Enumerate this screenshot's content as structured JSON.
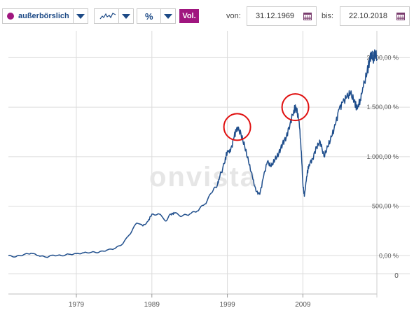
{
  "toolbar": {
    "exchange_label": "außerbörslich",
    "percent_label": "%",
    "vol_label": "Vol.",
    "from_label": "von:",
    "from_value": "31.12.1969",
    "to_label": "bis:",
    "to_value": "22.10.2018",
    "icons": {
      "exchange_dot": "purple-dot-icon",
      "line_type": "line-chart-icon",
      "calendar": "calendar-icon",
      "dropdown": "chevron-down-icon"
    },
    "colors": {
      "accent": "#a0167f",
      "control_text": "#1d4a86"
    }
  },
  "watermark": "onvista",
  "chart_data": {
    "type": "line",
    "x_range": [
      1970.0,
      2018.8
    ],
    "x_ticks": [
      {
        "value": 1979,
        "label": "1979"
      },
      {
        "value": 1989,
        "label": "1989"
      },
      {
        "value": 1999,
        "label": "1999"
      },
      {
        "value": 2009,
        "label": "2009"
      }
    ],
    "y_ticks": [
      {
        "value": 0,
        "label": "0,00 %"
      },
      {
        "value": 500,
        "label": "500,00 %"
      },
      {
        "value": 1000,
        "label": "1.000,00 %"
      },
      {
        "value": 1500,
        "label": "1.500,00 %"
      },
      {
        "value": 2000,
        "label": "2.000,00 %"
      }
    ],
    "ylim": [
      -90,
      2130
    ],
    "volume_axis_label": "0",
    "series": [
      {
        "color": "#1f4e8c",
        "points": [
          [
            1970.0,
            0
          ],
          [
            1971.0,
            -10
          ],
          [
            1972.0,
            10
          ],
          [
            1973.0,
            25
          ],
          [
            1974.0,
            0
          ],
          [
            1975.0,
            -15
          ],
          [
            1976.0,
            5
          ],
          [
            1977.0,
            0
          ],
          [
            1978.0,
            15
          ],
          [
            1979.0,
            20
          ],
          [
            1980.0,
            30
          ],
          [
            1981.0,
            35
          ],
          [
            1982.0,
            35
          ],
          [
            1983.0,
            55
          ],
          [
            1984.0,
            70
          ],
          [
            1985.0,
            110
          ],
          [
            1986.0,
            210
          ],
          [
            1987.0,
            330
          ],
          [
            1987.8,
            300
          ],
          [
            1988.5,
            350
          ],
          [
            1989.0,
            420
          ],
          [
            1990.0,
            420
          ],
          [
            1990.8,
            350
          ],
          [
            1991.5,
            420
          ],
          [
            1992.0,
            430
          ],
          [
            1993.0,
            400
          ],
          [
            1994.0,
            420
          ],
          [
            1995.0,
            450
          ],
          [
            1996.0,
            520
          ],
          [
            1997.0,
            640
          ],
          [
            1997.7,
            720
          ],
          [
            1998.0,
            800
          ],
          [
            1998.6,
            930
          ],
          [
            1999.0,
            1060
          ],
          [
            1999.4,
            1050
          ],
          [
            1999.9,
            1200
          ],
          [
            2000.3,
            1300
          ],
          [
            2000.8,
            1230
          ],
          [
            2001.3,
            1100
          ],
          [
            2001.8,
            950
          ],
          [
            2002.3,
            800
          ],
          [
            2002.8,
            650
          ],
          [
            2003.3,
            620
          ],
          [
            2003.8,
            800
          ],
          [
            2004.3,
            950
          ],
          [
            2004.8,
            900
          ],
          [
            2005.3,
            970
          ],
          [
            2005.8,
            1030
          ],
          [
            2006.3,
            1130
          ],
          [
            2006.8,
            1200
          ],
          [
            2007.3,
            1330
          ],
          [
            2007.8,
            1470
          ],
          [
            2008.1,
            1500
          ],
          [
            2008.5,
            1360
          ],
          [
            2008.8,
            1050
          ],
          [
            2009.0,
            720
          ],
          [
            2009.2,
            600
          ],
          [
            2009.5,
            800
          ],
          [
            2009.8,
            920
          ],
          [
            2010.3,
            980
          ],
          [
            2010.8,
            1100
          ],
          [
            2011.3,
            1150
          ],
          [
            2011.8,
            1000
          ],
          [
            2012.3,
            1100
          ],
          [
            2012.8,
            1200
          ],
          [
            2013.3,
            1320
          ],
          [
            2013.8,
            1480
          ],
          [
            2014.3,
            1550
          ],
          [
            2014.8,
            1600
          ],
          [
            2015.3,
            1640
          ],
          [
            2015.8,
            1560
          ],
          [
            2016.2,
            1480
          ],
          [
            2016.6,
            1580
          ],
          [
            2017.0,
            1700
          ],
          [
            2017.5,
            1850
          ],
          [
            2017.9,
            1990
          ],
          [
            2018.1,
            2050
          ],
          [
            2018.3,
            1980
          ],
          [
            2018.6,
            2060
          ],
          [
            2018.8,
            1990
          ]
        ]
      }
    ],
    "annotations": [
      {
        "type": "circle",
        "x": 2000.3,
        "y": 1300,
        "color": "#e01010"
      },
      {
        "type": "circle",
        "x": 2008.0,
        "y": 1500,
        "color": "#e01010"
      }
    ],
    "grid": true
  }
}
